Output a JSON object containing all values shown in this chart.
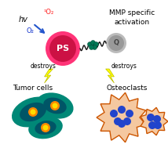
{
  "title": "MMP specific\nactivation",
  "title_fontsize": 6.5,
  "label_tumor": "Tumor cells",
  "label_osteo": "Osteoclasts",
  "label_destroys_left": "destroys",
  "label_destroys_right": "destroys",
  "label_ps": "PS",
  "label_q": "Q",
  "label_hv": "hv",
  "label_o2_singlet": "¹O₂",
  "label_o2": "O₂",
  "bg_color": "#ffffff",
  "ps_outer_color": "#ff3377",
  "ps_inner_color": "#cc1144",
  "ps_label_color": "#ffffff",
  "q_outer_color": "#bbbbbb",
  "q_inner_color": "#999999",
  "q_label_color": "#444444",
  "tumor_bg_color": "#008877",
  "tumor_cell_dark": "#005566",
  "tumor_nucleus_outer": "#ff8800",
  "tumor_nucleus_inner": "#ffdd00",
  "osteo_spike_color": "#cc5500",
  "osteo_body_color": "#f5c8a0",
  "osteo_nucleus_color": "#2244cc",
  "lightning_fill": "#ffff00",
  "lightning_edge": "#bbbb00",
  "arrow_color": "#2255cc",
  "connector_color": "#111111",
  "singlet_o2_color": "#ff2222",
  "o2_color": "#1133cc",
  "hv_color": "#000000",
  "green_cluster_color": "#007755",
  "green_cluster_edge": "#004433"
}
